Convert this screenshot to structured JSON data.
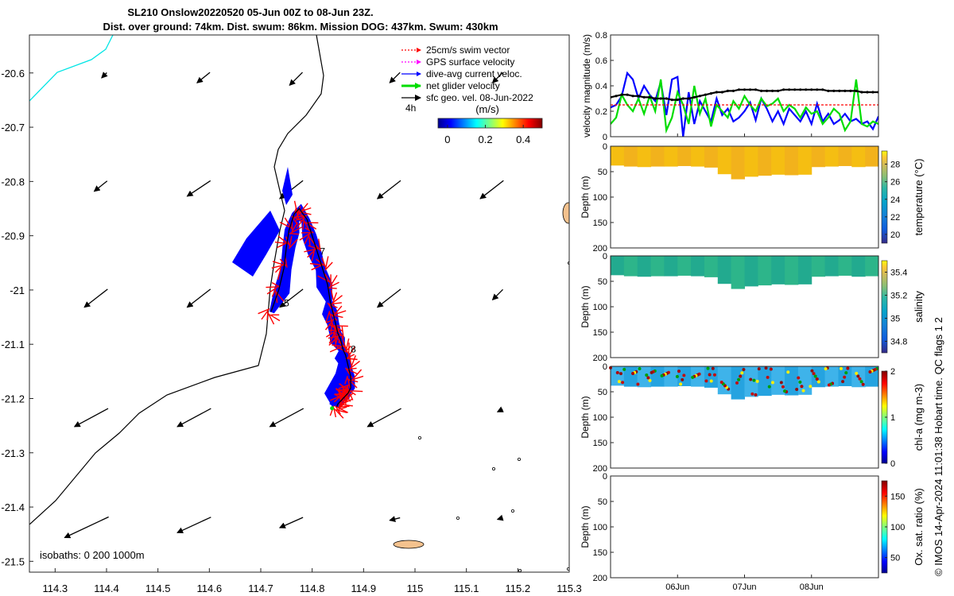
{
  "title_line1": "SL210 Onslow20220520 05-Jun 00Z to 08-Jun 23Z.",
  "title_line2": "Dist. over ground: 74km. Dist. swum: 86km. Mission DOG: 437km. Swum: 430km",
  "side_credit": "© IMOS 14-Apr-2024 11:01:38 Hobart time. QC flags 1  2",
  "colors": {
    "swim_vector": "#ff0000",
    "gps_velocity": "#ff00ff",
    "dive_avg_current": "#0000ff",
    "net_glider_velocity": "#00dd00",
    "sfc_geo_vel": "#000000",
    "coastline_cyan": "#00e5e5",
    "land": "#f4c28e"
  },
  "chart_data": [
    {
      "type": "scatter",
      "name_key": "map",
      "x_ticks": [
        "114.3",
        "114.4",
        "114.5",
        "114.6",
        "114.7",
        "114.8",
        "114.9",
        "115",
        "115.1",
        "115.2",
        "115.3"
      ],
      "y_ticks": [
        "-20.6",
        "-20.7",
        "-20.8",
        "-20.9",
        "-21",
        "-21.1",
        "-21.2",
        "-21.3",
        "-21.4",
        "-21.5"
      ],
      "xlim": [
        114.25,
        115.3
      ],
      "ylim": [
        -21.52,
        -20.53
      ],
      "legend": [
        {
          "label": "25cm/s swim vector",
          "color": "#ff0000",
          "style": "dotted-arrow"
        },
        {
          "label": "GPS surface velocity",
          "color": "#ff00ff",
          "style": "dotted-arrow"
        },
        {
          "label": "dive-avg current veloc.",
          "color": "#0000ff",
          "style": "arrow"
        },
        {
          "label": "net glider velocity",
          "color": "#00dd00",
          "style": "thick-arrow"
        },
        {
          "label": "sfc geo. vel. 08-Jun-2022",
          "color": "#000000",
          "style": "arrow"
        }
      ],
      "legend_placement": "top-right",
      "time_marker_label": "4h",
      "colorbar": {
        "title": "(m/s)",
        "ticks": [
          "0",
          "0.2",
          "0.4"
        ],
        "range": [
          -0.05,
          0.5
        ]
      },
      "isobaths_label": "isobaths: 0   200  1000m",
      "day_labels": [
        {
          "label": "5",
          "lon": 114.745,
          "lat": -21.03
        },
        {
          "label": "7",
          "lon": 114.815,
          "lat": -20.935
        },
        {
          "label": "8",
          "lon": 114.875,
          "lat": -21.115
        }
      ],
      "geo_vector_grid": {
        "lons": [
          114.4,
          114.6,
          114.78,
          114.97,
          115.17
        ],
        "lats": [
          -20.6,
          -20.8,
          -21.0,
          -21.22,
          -21.42
        ],
        "u_rows": [
          [
            -0.01,
            -0.025,
            -0.025,
            -0.02,
            -0.02
          ],
          [
            -0.025,
            -0.045,
            -0.045,
            -0.045,
            -0.045
          ],
          [
            -0.045,
            -0.045,
            -0.045,
            -0.045,
            -0.02
          ],
          [
            -0.065,
            -0.065,
            -0.065,
            -0.065,
            -0.01
          ],
          [
            -0.085,
            -0.065,
            -0.045,
            -0.02,
            -0.01
          ]
        ],
        "v_rows": [
          [
            -0.01,
            -0.02,
            -0.025,
            -0.02,
            -0.02
          ],
          [
            -0.02,
            -0.03,
            -0.035,
            -0.035,
            -0.035
          ],
          [
            -0.035,
            -0.035,
            -0.035,
            -0.035,
            -0.02
          ],
          [
            -0.035,
            -0.035,
            -0.035,
            -0.035,
            -0.005
          ],
          [
            -0.04,
            -0.03,
            -0.02,
            -0.005,
            -0.003
          ]
        ]
      },
      "glider_track": {
        "lon": [
          114.72,
          114.735,
          114.745,
          114.75,
          114.755,
          114.765,
          114.775,
          114.79,
          114.8,
          114.81,
          114.82,
          114.83,
          114.835,
          114.84,
          114.845,
          114.85,
          114.855,
          114.86,
          114.865,
          114.87,
          114.875,
          114.875,
          114.87,
          114.865,
          114.86,
          114.855,
          114.85,
          114.848
        ],
        "lat": [
          -21.04,
          -21.0,
          -20.96,
          -20.92,
          -20.89,
          -20.86,
          -20.85,
          -20.87,
          -20.9,
          -20.93,
          -20.96,
          -20.99,
          -21.02,
          -21.04,
          -21.06,
          -21.08,
          -21.09,
          -21.11,
          -21.12,
          -21.14,
          -21.16,
          -21.18,
          -21.19,
          -21.195,
          -21.2,
          -21.205,
          -21.21,
          -21.215
        ]
      }
    },
    {
      "type": "line",
      "name_key": "velocity",
      "ylabel": "velocity magnitude (m/s)",
      "ylim": [
        0,
        0.8
      ],
      "y_ticks": [
        "0",
        "0.2",
        "0.4",
        "0.6",
        "0.8"
      ],
      "x": [
        0,
        2,
        4,
        6,
        8,
        10,
        12,
        14,
        16,
        18,
        20,
        22,
        24,
        26,
        28,
        30,
        32,
        34,
        36,
        38,
        40,
        42,
        44,
        46,
        48,
        50,
        52,
        54,
        56,
        58,
        60,
        62,
        64,
        66,
        68,
        70,
        72,
        74,
        76,
        78,
        80,
        82,
        84,
        86,
        88,
        90,
        92,
        94,
        96
      ],
      "series": [
        {
          "color": "#0000ff",
          "values": [
            0.23,
            0.25,
            0.32,
            0.5,
            0.45,
            0.3,
            0.4,
            0.33,
            0.28,
            0.43,
            0.17,
            0.45,
            0.47,
            0.0,
            0.35,
            0.1,
            0.28,
            0.2,
            0.12,
            0.3,
            0.17,
            0.22,
            0.12,
            0.15,
            0.2,
            0.27,
            0.13,
            0.3,
            0.22,
            0.12,
            0.2,
            0.1,
            0.22,
            0.17,
            0.12,
            0.2,
            0.1,
            0.26,
            0.12,
            0.18,
            0.1,
            0.13,
            0.18,
            0.12,
            0.14,
            0.1,
            0.12,
            0.06,
            0.16
          ]
        },
        {
          "color": "#00dd00",
          "values": [
            0.1,
            0.15,
            0.33,
            0.25,
            0.2,
            0.3,
            0.18,
            0.32,
            0.2,
            0.45,
            0.05,
            0.15,
            0.35,
            0.25,
            0.1,
            0.4,
            0.18,
            0.3,
            0.08,
            0.25,
            0.2,
            0.15,
            0.28,
            0.22,
            0.32,
            0.25,
            0.2,
            0.3,
            0.24,
            0.26,
            0.3,
            0.2,
            0.25,
            0.22,
            0.15,
            0.23,
            0.18,
            0.2,
            0.1,
            0.15,
            0.22,
            0.18,
            0.05,
            0.12,
            0.45,
            0.1,
            0.08,
            0.12,
            0.1
          ]
        },
        {
          "color": "#000000",
          "values": [
            0.31,
            0.32,
            0.33,
            0.33,
            0.32,
            0.32,
            0.31,
            0.31,
            0.3,
            0.3,
            0.3,
            0.29,
            0.29,
            0.3,
            0.3,
            0.31,
            0.32,
            0.33,
            0.34,
            0.35,
            0.35,
            0.36,
            0.36,
            0.37,
            0.37,
            0.37,
            0.37,
            0.36,
            0.36,
            0.36,
            0.36,
            0.37,
            0.37,
            0.37,
            0.37,
            0.37,
            0.37,
            0.37,
            0.37,
            0.36,
            0.36,
            0.36,
            0.36,
            0.36,
            0.36,
            0.35,
            0.35,
            0.35,
            0.35
          ]
        },
        {
          "color": "#ff0000",
          "values": [
            0.25,
            0.25,
            0.25,
            0.25,
            0.25,
            0.25,
            0.25,
            0.25,
            0.25,
            0.25,
            0.25,
            0.25,
            0.25,
            0.25,
            0.25,
            0.25,
            0.25,
            0.25,
            0.25,
            0.25,
            0.25,
            0.25,
            0.25,
            0.25,
            0.25,
            0.25,
            0.25,
            0.25,
            0.25,
            0.25,
            0.25,
            0.25,
            0.25,
            0.25,
            0.25,
            0.25,
            0.25,
            0.25,
            0.25,
            0.25,
            0.25,
            0.25,
            0.25,
            0.25,
            0.25,
            0.25,
            0.25,
            0.25,
            0.25
          ]
        }
      ]
    },
    {
      "type": "heatmap",
      "name_key": "temperature",
      "ylabel": "Depth (m)",
      "clabel": "temperature (°C)",
      "ylim": [
        200,
        0
      ],
      "y_ticks": [
        "0",
        "50",
        "100",
        "150",
        "200"
      ],
      "c_ticks": [
        "20",
        "22",
        "24",
        "26",
        "28"
      ],
      "clim": [
        19,
        29.5
      ],
      "surface_value": 28.0,
      "max_depth_by_segment": [
        38,
        40,
        41,
        40,
        40,
        39,
        40,
        42,
        55,
        65,
        60,
        58,
        56,
        57,
        56,
        41,
        40,
        39,
        41,
        40
      ]
    },
    {
      "type": "heatmap",
      "name_key": "salinity",
      "ylabel": "Depth (m)",
      "clabel": "salinity",
      "ylim": [
        200,
        0
      ],
      "y_ticks": [
        "0",
        "50",
        "100",
        "150",
        "200"
      ],
      "c_ticks": [
        "34.8",
        "35",
        "35.2",
        "35.4"
      ],
      "clim": [
        34.7,
        35.5
      ],
      "surface_value": 35.28,
      "max_depth_by_segment": [
        38,
        40,
        41,
        40,
        40,
        39,
        40,
        42,
        55,
        65,
        60,
        58,
        56,
        57,
        56,
        41,
        40,
        39,
        41,
        40
      ]
    },
    {
      "type": "heatmap",
      "name_key": "chla",
      "ylabel": "Depth (m)",
      "clabel": "chl-a (mg m-3)",
      "ylim": [
        200,
        0
      ],
      "y_ticks": [
        "0",
        "50",
        "100",
        "150",
        "200"
      ],
      "c_ticks": [
        "0",
        "1",
        "2"
      ],
      "clim": [
        0,
        2
      ],
      "surface_value": 0.65,
      "max_depth_by_segment": [
        38,
        40,
        41,
        40,
        40,
        39,
        40,
        42,
        55,
        65,
        60,
        58,
        56,
        57,
        56,
        41,
        40,
        39,
        41,
        40
      ]
    },
    {
      "type": "heatmap",
      "name_key": "oxygen",
      "ylabel": "Depth (m)",
      "clabel": "Ox. sat. ratio (%)",
      "ylim": [
        200,
        0
      ],
      "y_ticks": [
        "0",
        "50",
        "100",
        "150",
        "200"
      ],
      "c_ticks": [
        "50",
        "100",
        "150"
      ],
      "clim": [
        25,
        175
      ],
      "x_ticks": [
        "06Jun",
        "07Jun",
        "08Jun"
      ],
      "x_tick_hours": [
        24,
        48,
        72
      ],
      "xlim_hours": [
        0,
        96
      ]
    }
  ]
}
